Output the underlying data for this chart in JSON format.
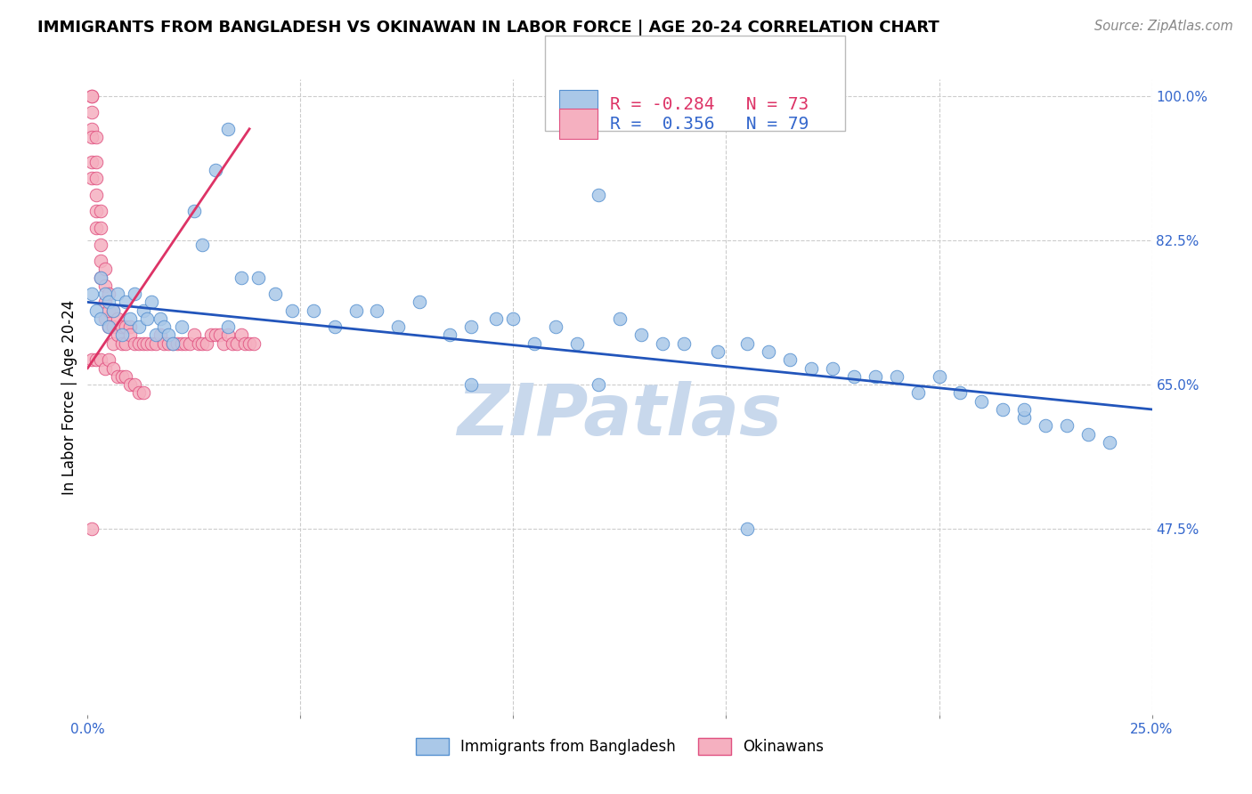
{
  "title": "IMMIGRANTS FROM BANGLADESH VS OKINAWAN IN LABOR FORCE | AGE 20-24 CORRELATION CHART",
  "source": "Source: ZipAtlas.com",
  "ylabel": "In Labor Force | Age 20-24",
  "x_min": 0.0,
  "x_max": 0.25,
  "y_min": 0.25,
  "y_max": 1.02,
  "y_ticks": [
    0.475,
    0.65,
    0.825,
    1.0
  ],
  "y_tick_labels": [
    "47.5%",
    "65.0%",
    "82.5%",
    "100.0%"
  ],
  "blue_R": "-0.284",
  "blue_N": "73",
  "pink_R": "0.356",
  "pink_N": "79",
  "blue_color": "#aac8e8",
  "pink_color": "#f5b0c0",
  "blue_edge_color": "#5590d0",
  "pink_edge_color": "#e05080",
  "blue_line_color": "#2255bb",
  "pink_line_color": "#dd3366",
  "grid_color": "#cccccc",
  "watermark_color": "#c8d8ec",
  "blue_x": [
    0.001,
    0.002,
    0.003,
    0.003,
    0.004,
    0.005,
    0.005,
    0.006,
    0.007,
    0.008,
    0.009,
    0.01,
    0.011,
    0.012,
    0.013,
    0.014,
    0.015,
    0.016,
    0.017,
    0.018,
    0.019,
    0.02,
    0.022,
    0.025,
    0.027,
    0.03,
    0.033,
    0.036,
    0.04,
    0.044,
    0.048,
    0.053,
    0.058,
    0.063,
    0.068,
    0.073,
    0.078,
    0.085,
    0.09,
    0.096,
    0.1,
    0.105,
    0.11,
    0.115,
    0.12,
    0.125,
    0.13,
    0.135,
    0.14,
    0.148,
    0.155,
    0.16,
    0.165,
    0.17,
    0.175,
    0.18,
    0.185,
    0.19,
    0.195,
    0.2,
    0.205,
    0.21,
    0.215,
    0.22,
    0.225,
    0.23,
    0.235,
    0.24,
    0.033,
    0.09,
    0.12,
    0.155,
    0.22
  ],
  "blue_y": [
    0.76,
    0.74,
    0.73,
    0.78,
    0.76,
    0.75,
    0.72,
    0.74,
    0.76,
    0.71,
    0.75,
    0.73,
    0.76,
    0.72,
    0.74,
    0.73,
    0.75,
    0.71,
    0.73,
    0.72,
    0.71,
    0.7,
    0.72,
    0.86,
    0.82,
    0.91,
    0.96,
    0.78,
    0.78,
    0.76,
    0.74,
    0.74,
    0.72,
    0.74,
    0.74,
    0.72,
    0.75,
    0.71,
    0.72,
    0.73,
    0.73,
    0.7,
    0.72,
    0.7,
    0.88,
    0.73,
    0.71,
    0.7,
    0.7,
    0.69,
    0.7,
    0.69,
    0.68,
    0.67,
    0.67,
    0.66,
    0.66,
    0.66,
    0.64,
    0.66,
    0.64,
    0.63,
    0.62,
    0.61,
    0.6,
    0.6,
    0.59,
    0.58,
    0.72,
    0.65,
    0.65,
    0.475,
    0.62
  ],
  "pink_x": [
    0.001,
    0.001,
    0.001,
    0.001,
    0.001,
    0.001,
    0.001,
    0.002,
    0.002,
    0.002,
    0.002,
    0.002,
    0.002,
    0.003,
    0.003,
    0.003,
    0.003,
    0.003,
    0.004,
    0.004,
    0.004,
    0.004,
    0.005,
    0.005,
    0.005,
    0.006,
    0.006,
    0.006,
    0.007,
    0.007,
    0.008,
    0.008,
    0.009,
    0.009,
    0.01,
    0.01,
    0.011,
    0.012,
    0.013,
    0.014,
    0.015,
    0.016,
    0.017,
    0.018,
    0.019,
    0.02,
    0.021,
    0.022,
    0.023,
    0.024,
    0.025,
    0.026,
    0.027,
    0.028,
    0.029,
    0.03,
    0.031,
    0.032,
    0.033,
    0.034,
    0.035,
    0.036,
    0.037,
    0.038,
    0.039,
    0.001,
    0.002,
    0.003,
    0.004,
    0.005,
    0.006,
    0.007,
    0.008,
    0.009,
    0.01,
    0.011,
    0.012,
    0.013,
    0.001
  ],
  "pink_y": [
    1.0,
    1.0,
    0.98,
    0.96,
    0.95,
    0.92,
    0.9,
    0.95,
    0.92,
    0.9,
    0.88,
    0.86,
    0.84,
    0.86,
    0.84,
    0.82,
    0.8,
    0.78,
    0.79,
    0.77,
    0.75,
    0.73,
    0.76,
    0.74,
    0.72,
    0.74,
    0.72,
    0.7,
    0.73,
    0.71,
    0.72,
    0.7,
    0.72,
    0.7,
    0.72,
    0.71,
    0.7,
    0.7,
    0.7,
    0.7,
    0.7,
    0.7,
    0.71,
    0.7,
    0.7,
    0.7,
    0.7,
    0.7,
    0.7,
    0.7,
    0.71,
    0.7,
    0.7,
    0.7,
    0.71,
    0.71,
    0.71,
    0.7,
    0.71,
    0.7,
    0.7,
    0.71,
    0.7,
    0.7,
    0.7,
    0.68,
    0.68,
    0.68,
    0.67,
    0.68,
    0.67,
    0.66,
    0.66,
    0.66,
    0.65,
    0.65,
    0.64,
    0.64,
    0.475
  ],
  "blue_trend_x": [
    0.0,
    0.25
  ],
  "blue_trend_y": [
    0.75,
    0.62
  ],
  "pink_trend_x": [
    0.0,
    0.038
  ],
  "pink_trend_y": [
    0.67,
    0.96
  ]
}
